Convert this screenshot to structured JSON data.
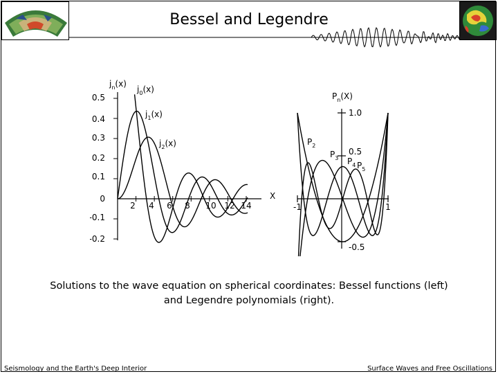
{
  "slide": {
    "title": "Bessel and Legendre",
    "caption_line1": "Solutions to the wave equation on spherical coordinates: Bessel functions (left)",
    "caption_line2": "and Legendre polynomials (right).",
    "footer_left": "Seismology and the Earth's Deep Interior",
    "footer_right": "Surface Waves and Free Oscillations",
    "logo_left_icon": "earth-cutaway-icon",
    "logo_right_icon": "tomography-globe-icon"
  },
  "figure": {
    "bessel": {
      "ylabel_main": "j",
      "ylabel_sub": "n",
      "ylabel_arg": "(x)",
      "xlabel": "X",
      "yticks": [
        "0.5",
        "0.4",
        "0.3",
        "0.2",
        "0.1",
        "0",
        "-0.1",
        "-0.2"
      ],
      "xticks": [
        "2",
        "4",
        "6",
        "8",
        "10",
        "12",
        "14"
      ],
      "curve_labels": [
        {
          "main": "j",
          "sub": "0",
          "arg": "(x)"
        },
        {
          "main": "j",
          "sub": "1",
          "arg": "(x)"
        },
        {
          "main": "j",
          "sub": "2",
          "arg": "(x)"
        }
      ]
    },
    "legendre": {
      "ylabel_main": "P",
      "ylabel_sub": "n",
      "ylabel_arg": "(X)",
      "yticks": [
        "1.0",
        "0.5",
        "-0.5"
      ],
      "xticks": [
        "-1",
        "1"
      ],
      "curve_labels": [
        {
          "main": "P",
          "sub": "2"
        },
        {
          "main": "P",
          "sub": "3"
        },
        {
          "main": "P",
          "sub": "4"
        },
        {
          "main": "P",
          "sub": "5"
        }
      ]
    }
  }
}
